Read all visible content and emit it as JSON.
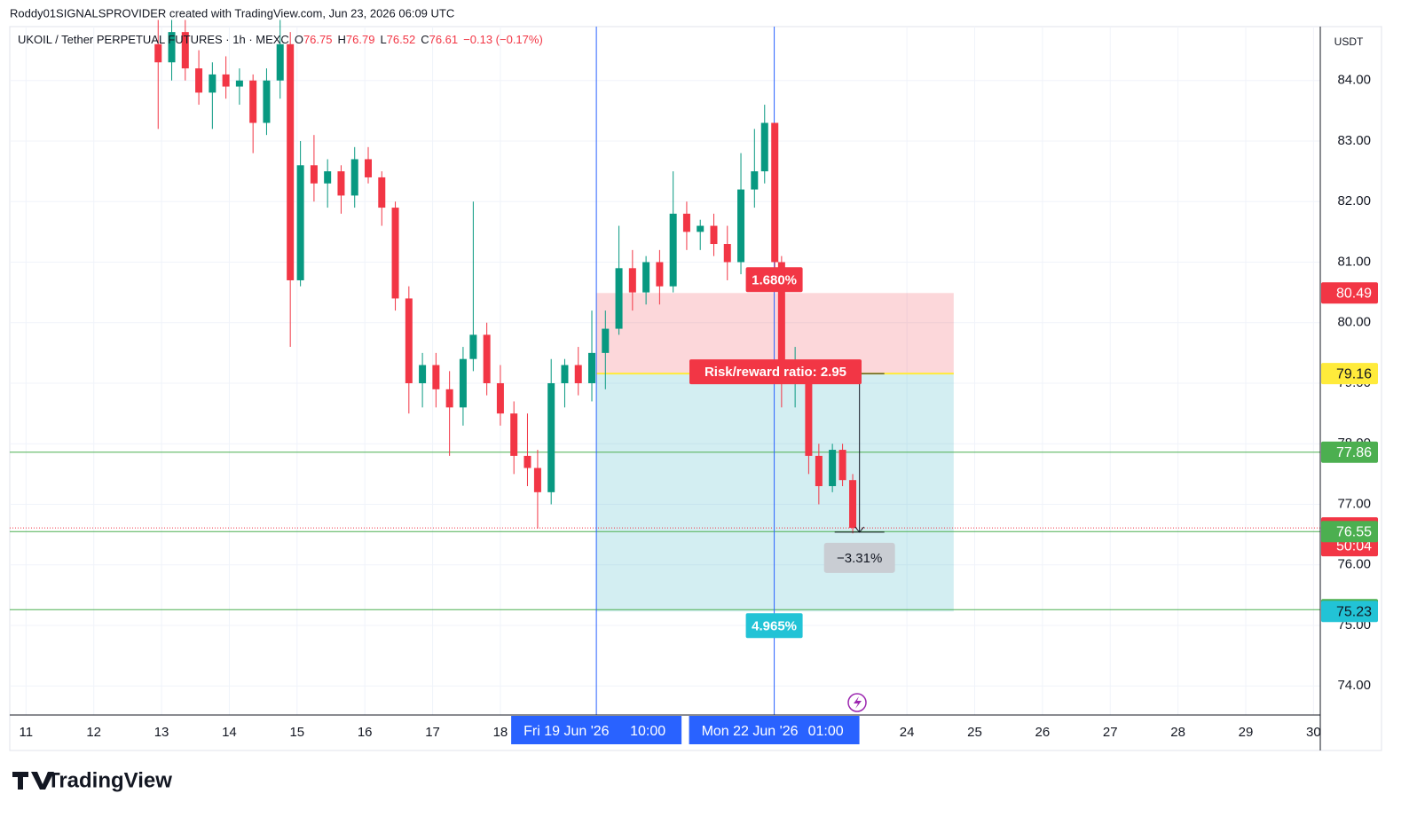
{
  "header": {
    "credit": "Roddy01SIGNALSPROVIDER created with TradingView.com, Jun 23, 2026 06:09 UTC",
    "symbol": "UKOIL / Tether PERPETUAL FUTURES · 1h · MEXC",
    "ohlc": [
      {
        "label": "O",
        "value": 76.75
      },
      {
        "label": "H",
        "value": 76.79
      },
      {
        "label": "L",
        "value": 76.52
      },
      {
        "label": "C",
        "value": 76.61
      }
    ],
    "change": "−0.13 (−0.17%)",
    "brand": "TradingView"
  },
  "chart_data": {
    "type": "candlestick",
    "currency": "USDT",
    "up_color": "#089981",
    "down_color": "#f23645",
    "x": [
      12.95,
      13.15,
      13.35,
      13.55,
      13.75,
      13.95,
      14.15,
      14.35,
      14.55,
      14.75,
      14.9,
      15.05,
      15.25,
      15.45,
      15.65,
      15.85,
      16.05,
      16.25,
      16.45,
      16.65,
      16.85,
      17.05,
      17.25,
      17.45,
      17.6,
      17.8,
      18.0,
      18.2,
      18.4,
      18.55,
      18.75,
      18.95,
      19.15,
      19.35,
      19.55,
      19.75,
      19.95,
      20.15,
      20.35,
      20.55,
      20.75,
      20.95,
      21.15,
      21.35,
      21.55,
      21.75,
      21.9,
      22.05,
      22.15,
      22.35,
      22.55,
      22.7,
      22.9,
      23.05,
      23.2
    ],
    "open": [
      84.6,
      84.3,
      84.8,
      84.2,
      83.8,
      84.1,
      83.9,
      84.0,
      83.3,
      84.0,
      84.6,
      80.7,
      82.6,
      82.3,
      82.5,
      82.1,
      82.7,
      82.4,
      81.9,
      80.4,
      79.0,
      79.3,
      78.9,
      78.6,
      79.4,
      79.8,
      79.0,
      78.5,
      77.8,
      77.6,
      77.2,
      79.0,
      79.3,
      79.0,
      79.5,
      79.9,
      80.9,
      80.5,
      81.0,
      80.6,
      81.8,
      81.5,
      81.6,
      81.3,
      81.0,
      82.2,
      82.5,
      83.3,
      81.0,
      79.0,
      79.1,
      77.8,
      77.3,
      77.9,
      77.4
    ],
    "high": [
      85.0,
      85.0,
      85.0,
      84.5,
      84.3,
      84.4,
      84.2,
      84.1,
      84.2,
      85.0,
      84.8,
      83.0,
      83.1,
      82.7,
      82.6,
      82.9,
      82.9,
      82.5,
      82.0,
      80.6,
      79.5,
      79.5,
      79.2,
      79.6,
      82.0,
      80.0,
      79.3,
      78.7,
      78.5,
      77.9,
      79.4,
      79.4,
      79.6,
      80.2,
      80.2,
      81.6,
      81.2,
      81.1,
      81.2,
      82.5,
      82.0,
      81.7,
      81.8,
      81.6,
      82.8,
      83.2,
      83.6,
      83.3,
      81.1,
      79.6,
      79.2,
      78.0,
      78.0,
      78.0,
      77.5
    ],
    "low": [
      83.2,
      84.0,
      84.0,
      83.6,
      83.2,
      83.7,
      83.6,
      82.8,
      83.1,
      83.7,
      79.6,
      80.6,
      82.0,
      81.9,
      81.8,
      81.9,
      82.3,
      81.6,
      80.2,
      78.5,
      78.6,
      78.6,
      77.8,
      78.3,
      79.2,
      78.8,
      78.3,
      77.5,
      77.3,
      76.6,
      77.0,
      78.6,
      78.8,
      78.7,
      78.9,
      79.8,
      80.2,
      80.3,
      80.3,
      80.5,
      81.2,
      81.2,
      81.1,
      80.7,
      80.8,
      81.9,
      82.3,
      80.8,
      78.6,
      78.6,
      77.5,
      77.0,
      77.2,
      77.3,
      76.52
    ],
    "close": [
      84.3,
      84.8,
      84.2,
      83.8,
      84.1,
      83.9,
      84.0,
      83.3,
      84.0,
      84.6,
      80.7,
      82.6,
      82.3,
      82.5,
      82.1,
      82.7,
      82.4,
      81.9,
      80.4,
      79.0,
      79.3,
      78.9,
      78.6,
      79.4,
      79.8,
      79.0,
      78.5,
      77.8,
      77.6,
      77.2,
      79.0,
      79.3,
      79.0,
      79.5,
      79.9,
      80.9,
      80.5,
      81.0,
      80.6,
      81.8,
      81.5,
      81.6,
      81.3,
      81.0,
      82.2,
      82.5,
      83.3,
      81.0,
      79.0,
      79.1,
      77.8,
      77.3,
      77.9,
      77.4,
      76.61
    ],
    "xlim": [
      10.76,
      30.1
    ],
    "xticks": [
      11,
      12,
      13,
      14,
      15,
      16,
      17,
      18,
      24,
      25,
      26,
      27,
      28,
      29,
      30
    ],
    "ylim": [
      73.52,
      84.89
    ],
    "yticks": [
      {
        "value": 74,
        "label": "74.00"
      },
      {
        "value": 75,
        "label": "75.00"
      },
      {
        "value": 76,
        "label": "76.00"
      },
      {
        "value": 77,
        "label": "77.00"
      },
      {
        "value": 78,
        "label": "78.00"
      },
      {
        "value": 79,
        "label": "79.00"
      },
      {
        "value": 80,
        "label": "80.00"
      },
      {
        "value": 81,
        "label": "81.00"
      },
      {
        "value": 82,
        "label": "82.00"
      },
      {
        "value": 83,
        "label": "83.00"
      },
      {
        "value": 84,
        "label": "84.00"
      }
    ],
    "grid": true,
    "vertical_lines": [
      {
        "value": 19.4167,
        "date": "Fri 19 Jun '26",
        "time": "10:00"
      },
      {
        "value": 22.0417,
        "date": "Mon 22 Jun '26",
        "time": "01:00"
      }
    ],
    "hlines": [
      {
        "value": 77.86,
        "color": "#4caf50"
      },
      {
        "value": 76.55,
        "color": "#4caf50"
      },
      {
        "value": 75.26,
        "color": "#4caf50"
      }
    ],
    "last_price": {
      "value": 76.61,
      "countdown": "50:04",
      "color": "#f23645"
    },
    "position": {
      "x_start": 19.4167,
      "x_end": 24.69,
      "entry": 79.16,
      "stop": 80.49,
      "target": 75.23,
      "stop_pct": {
        "value": 1.68,
        "label": "1.680%"
      },
      "target_pct": {
        "value": 4.965,
        "label": "4.965%"
      },
      "ratio_label": "Risk/reward ratio: 2.95"
    },
    "measure": {
      "x": 23.3,
      "from": 79.16,
      "to": 76.54,
      "label": "−3.31%"
    }
  }
}
